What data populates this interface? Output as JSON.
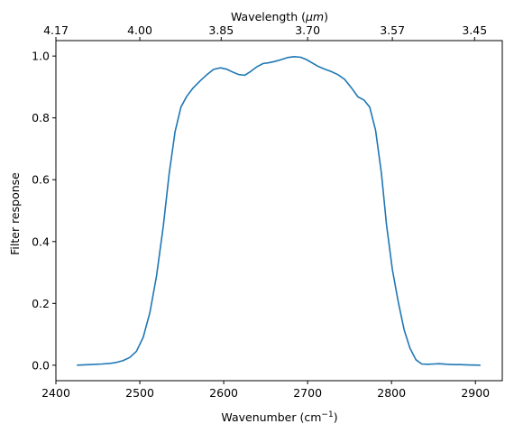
{
  "chart_data": {
    "type": "line",
    "title": "",
    "xlabel": "Wavenumber (cm",
    "xlabel_sup": "−1",
    "xlabel_end": ")",
    "ylabel": "Filter response",
    "top_xlabel": "Wavelength (",
    "top_xlabel_mu": "μm",
    "top_xlabel_end": ")",
    "xlim": [
      2400,
      2932
    ],
    "ylim": [
      -0.05,
      1.05
    ],
    "xticks": [
      2400,
      2500,
      2600,
      2700,
      2800,
      2900
    ],
    "xtick_labels": [
      "2400",
      "2500",
      "2600",
      "2700",
      "2800",
      "2900"
    ],
    "yticks": [
      0.0,
      0.2,
      0.4,
      0.6,
      0.8,
      1.0
    ],
    "ytick_labels": [
      "0.0",
      "0.2",
      "0.4",
      "0.6",
      "0.8",
      "1.0"
    ],
    "top_ticks": [
      {
        "wavenumber": 2400,
        "label": "4.17"
      },
      {
        "wavenumber": 2500,
        "label": "4.00"
      },
      {
        "wavenumber": 2597,
        "label": "3.85"
      },
      {
        "wavenumber": 2700,
        "label": "3.70"
      },
      {
        "wavenumber": 2801,
        "label": "3.57"
      },
      {
        "wavenumber": 2899,
        "label": "3.45"
      }
    ],
    "grid": false,
    "line_color": "#1f77b4",
    "series": [
      {
        "x": [
          2425,
          2440,
          2455,
          2465,
          2472,
          2480,
          2488,
          2496,
          2504,
          2512,
          2520,
          2528,
          2535,
          2542,
          2549,
          2556,
          2563,
          2572,
          2580,
          2588,
          2596,
          2603,
          2611,
          2618,
          2625,
          2632,
          2640,
          2647,
          2653,
          2660,
          2668,
          2676,
          2684,
          2692,
          2699,
          2706,
          2713,
          2720,
          2728,
          2736,
          2744,
          2752,
          2760,
          2767,
          2774,
          2781,
          2788,
          2794,
          2801,
          2808,
          2815,
          2822,
          2829,
          2836,
          2843,
          2850,
          2857,
          2866,
          2874,
          2882,
          2892,
          2906
        ],
        "y": [
          0.0,
          0.002,
          0.004,
          0.006,
          0.009,
          0.015,
          0.025,
          0.045,
          0.09,
          0.17,
          0.29,
          0.45,
          0.62,
          0.755,
          0.835,
          0.87,
          0.895,
          0.92,
          0.94,
          0.957,
          0.962,
          0.958,
          0.948,
          0.94,
          0.938,
          0.95,
          0.966,
          0.976,
          0.978,
          0.982,
          0.988,
          0.995,
          0.998,
          0.996,
          0.988,
          0.977,
          0.966,
          0.958,
          0.95,
          0.94,
          0.925,
          0.898,
          0.868,
          0.858,
          0.835,
          0.76,
          0.62,
          0.455,
          0.31,
          0.205,
          0.115,
          0.055,
          0.018,
          0.004,
          0.003,
          0.004,
          0.005,
          0.003,
          0.002,
          0.002,
          0.001,
          0.0
        ]
      }
    ]
  }
}
